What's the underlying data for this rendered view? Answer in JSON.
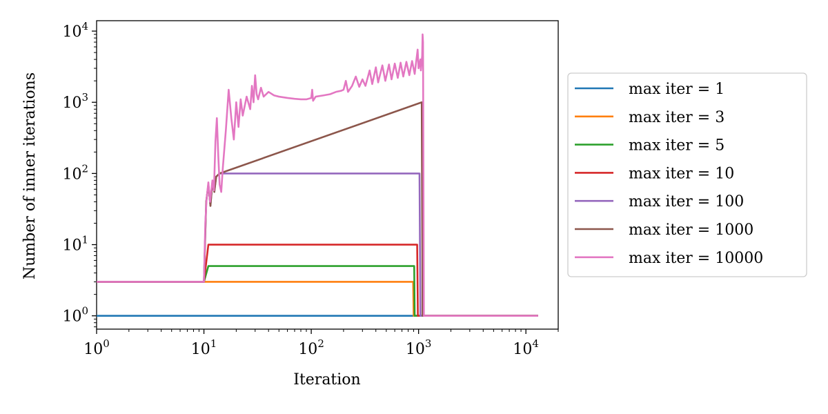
{
  "chart_data": {
    "type": "line",
    "xscale": "log",
    "yscale": "log",
    "xlabel": "Iteration",
    "ylabel": "Number of inner iterations",
    "xlim": [
      1,
      20000
    ],
    "ylim": [
      0.65,
      14000
    ],
    "x_ticks": [
      {
        "base": "10",
        "exp": "0",
        "value": 1
      },
      {
        "base": "10",
        "exp": "1",
        "value": 10
      },
      {
        "base": "10",
        "exp": "2",
        "value": 100
      },
      {
        "base": "10",
        "exp": "3",
        "value": 1000
      },
      {
        "base": "10",
        "exp": "4",
        "value": 10000
      }
    ],
    "y_ticks": [
      {
        "base": "10",
        "exp": "0",
        "value": 1
      },
      {
        "base": "10",
        "exp": "1",
        "value": 10
      },
      {
        "base": "10",
        "exp": "2",
        "value": 100
      },
      {
        "base": "10",
        "exp": "3",
        "value": 1000
      },
      {
        "base": "10",
        "exp": "4",
        "value": 10000
      }
    ],
    "legend_position": "outside-right",
    "series": [
      {
        "name": "max iter = 1",
        "color": "#1f77b4",
        "points": [
          [
            1,
            1
          ],
          [
            1000,
            1
          ],
          [
            4000,
            1
          ],
          [
            13000,
            1
          ]
        ]
      },
      {
        "name": "max iter = 3",
        "color": "#ff7f0e",
        "points": [
          [
            1,
            3
          ],
          [
            10,
            3
          ],
          [
            11,
            3
          ],
          [
            890,
            3
          ],
          [
            900,
            1
          ],
          [
            13000,
            1
          ]
        ]
      },
      {
        "name": "max iter = 5",
        "color": "#2ca02c",
        "points": [
          [
            1,
            3
          ],
          [
            10,
            3
          ],
          [
            11,
            5
          ],
          [
            910,
            5
          ],
          [
            920,
            1
          ],
          [
            13000,
            1
          ]
        ]
      },
      {
        "name": "max iter = 10",
        "color": "#d62728",
        "points": [
          [
            1,
            3
          ],
          [
            10,
            3
          ],
          [
            11,
            10
          ],
          [
            970,
            10
          ],
          [
            985,
            1
          ],
          [
            13000,
            1
          ]
        ]
      },
      {
        "name": "max iter = 100",
        "color": "#9467bd",
        "points": [
          [
            1,
            3
          ],
          [
            10,
            3
          ],
          [
            10.5,
            40
          ],
          [
            11,
            70
          ],
          [
            11.5,
            35
          ],
          [
            12,
            75
          ],
          [
            12.5,
            55
          ],
          [
            13,
            90
          ],
          [
            14,
            100
          ],
          [
            1020,
            100
          ],
          [
            1040,
            1
          ],
          [
            4000,
            1
          ],
          [
            13000,
            1
          ]
        ]
      },
      {
        "name": "max iter = 1000",
        "color": "#8c564b",
        "points": [
          [
            1,
            3
          ],
          [
            10,
            3
          ],
          [
            10.5,
            40
          ],
          [
            11,
            70
          ],
          [
            11.5,
            35
          ],
          [
            12,
            75
          ],
          [
            12.5,
            55
          ],
          [
            13,
            90
          ],
          [
            14,
            100
          ],
          [
            1070,
            1000
          ],
          [
            1090,
            1
          ],
          [
            13000,
            1
          ]
        ]
      },
      {
        "name": "max iter = 10000",
        "color": "#e377c2",
        "points": [
          [
            1,
            3
          ],
          [
            10,
            3
          ],
          [
            10.3,
            20
          ],
          [
            10.6,
            45
          ],
          [
            11,
            75
          ],
          [
            11.4,
            40
          ],
          [
            12,
            80
          ],
          [
            12.4,
            58
          ],
          [
            12.8,
            280
          ],
          [
            13.2,
            600
          ],
          [
            13.6,
            180
          ],
          [
            14,
            70
          ],
          [
            14.5,
            55
          ],
          [
            15,
            120
          ],
          [
            16,
            400
          ],
          [
            17,
            1500
          ],
          [
            18,
            600
          ],
          [
            19,
            300
          ],
          [
            20,
            1000
          ],
          [
            21,
            450
          ],
          [
            22,
            1100
          ],
          [
            23,
            650
          ],
          [
            25,
            1200
          ],
          [
            27,
            800
          ],
          [
            28,
            1700
          ],
          [
            29,
            1000
          ],
          [
            30,
            2400
          ],
          [
            31,
            1300
          ],
          [
            32,
            1100
          ],
          [
            34,
            1600
          ],
          [
            36,
            1200
          ],
          [
            40,
            1400
          ],
          [
            45,
            1250
          ],
          [
            50,
            1200
          ],
          [
            60,
            1150
          ],
          [
            70,
            1120
          ],
          [
            80,
            1100
          ],
          [
            90,
            1100
          ],
          [
            100,
            1150
          ],
          [
            102,
            1500
          ],
          [
            104,
            1050
          ],
          [
            110,
            1200
          ],
          [
            130,
            1250
          ],
          [
            150,
            1300
          ],
          [
            170,
            1400
          ],
          [
            190,
            1450
          ],
          [
            200,
            1500
          ],
          [
            210,
            2000
          ],
          [
            220,
            1400
          ],
          [
            240,
            1700
          ],
          [
            260,
            2300
          ],
          [
            280,
            1650
          ],
          [
            300,
            2100
          ],
          [
            320,
            1700
          ],
          [
            350,
            2800
          ],
          [
            370,
            1800
          ],
          [
            400,
            3100
          ],
          [
            420,
            1900
          ],
          [
            460,
            3300
          ],
          [
            490,
            2000
          ],
          [
            530,
            3400
          ],
          [
            560,
            2100
          ],
          [
            600,
            3500
          ],
          [
            640,
            2200
          ],
          [
            680,
            3600
          ],
          [
            720,
            2300
          ],
          [
            770,
            3700
          ],
          [
            820,
            2400
          ],
          [
            870,
            3800
          ],
          [
            920,
            2500
          ],
          [
            980,
            5500
          ],
          [
            1000,
            3000
          ],
          [
            1040,
            4000
          ],
          [
            1050,
            2800
          ],
          [
            1080,
            4500
          ],
          [
            1090,
            9000
          ],
          [
            1100,
            7000
          ],
          [
            1120,
            1
          ],
          [
            13000,
            1
          ]
        ]
      }
    ]
  }
}
